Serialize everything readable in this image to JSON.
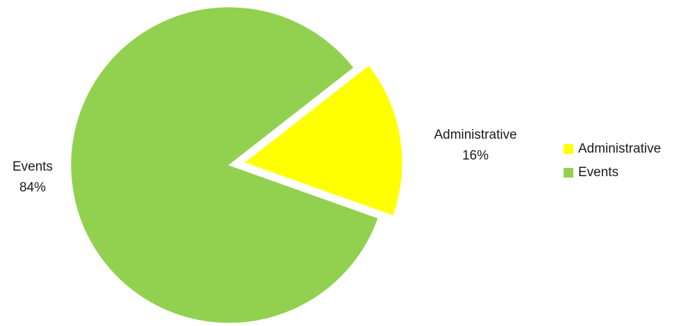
{
  "chart_data": {
    "type": "pie",
    "title": "",
    "slices": [
      {
        "label": "Administrative",
        "value": 16,
        "percent_label": "16%",
        "color": "#FFFF00",
        "exploded": true
      },
      {
        "label": "Events",
        "value": 84,
        "percent_label": "84%",
        "color": "#92D050",
        "exploded": false
      }
    ],
    "legend": {
      "placement": "right",
      "items": [
        "Administrative",
        "Events"
      ]
    }
  }
}
